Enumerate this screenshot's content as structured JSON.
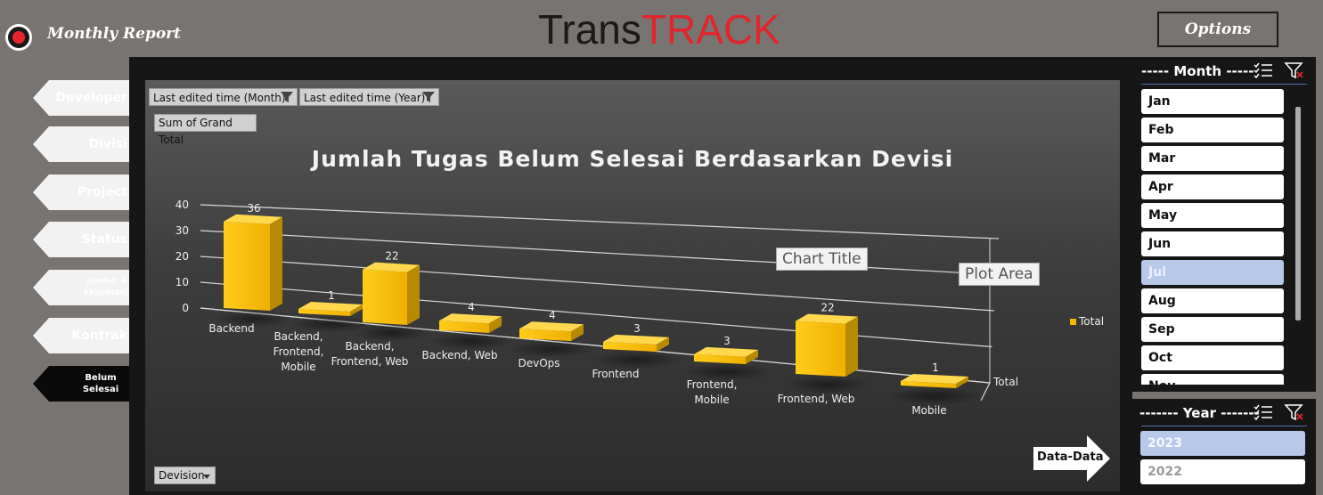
{
  "header": {
    "report_title": "Monthly Report",
    "brand_part1": "Trans",
    "brand_part2": "TRACK",
    "options_label": "Options"
  },
  "nav": [
    {
      "label": "Developer"
    },
    {
      "label": "Divisi"
    },
    {
      "label": "Project"
    },
    {
      "label": "Status"
    },
    {
      "label": "Jumlah & Ekspetasi"
    },
    {
      "label": "Kontrak"
    },
    {
      "label": "Belum Selesai",
      "active": true
    }
  ],
  "pivot": {
    "filter_month": "Last edited time (Month)",
    "filter_year": "Last edited time (Year)",
    "value_field": "Sum of Grand Total",
    "axis_field": "Devision"
  },
  "tooltips": {
    "chart_title_tip": "Chart Title",
    "plot_area_tip": "Plot Area"
  },
  "data_button": "Data-Data",
  "chart_data": {
    "type": "bar",
    "title": "Jumlah Tugas Belum Selesai Berdasarkan Devisi",
    "categories": [
      "Backend",
      "Backend, Frontend, Mobile",
      "Backend, Frontend, Web",
      "Backend, Web",
      "DevOps",
      "Frontend",
      "Frontend, Mobile",
      "Frontend, Web",
      "Mobile"
    ],
    "category_lines": [
      [
        "Backend"
      ],
      [
        "Backend,",
        "Frontend,",
        "Mobile"
      ],
      [
        "Backend,",
        "Frontend, Web"
      ],
      [
        "Backend, Web"
      ],
      [
        "DevOps"
      ],
      [
        "Frontend"
      ],
      [
        "Frontend,",
        "Mobile"
      ],
      [
        "Frontend, Web"
      ],
      [
        "Mobile"
      ]
    ],
    "series": [
      {
        "name": "Total",
        "values": [
          36,
          1,
          22,
          4,
          4,
          3,
          3,
          22,
          1
        ]
      }
    ],
    "data_labels": [
      "36",
      "1",
      "22",
      "4",
      "4",
      "3",
      "3",
      "22",
      "1"
    ],
    "y_ticks": [
      "0",
      "10",
      "20",
      "30",
      "40"
    ],
    "ylim": [
      0,
      40
    ],
    "depth_axis_label": "Total",
    "legend": "right",
    "grid": true,
    "bar_color": "#f3b800"
  },
  "month_slicer": {
    "title": "----- Month -----",
    "items": [
      {
        "label": "Jan",
        "selected": false
      },
      {
        "label": "Feb",
        "selected": false
      },
      {
        "label": "Mar",
        "selected": false
      },
      {
        "label": "Apr",
        "selected": false
      },
      {
        "label": "May",
        "selected": false
      },
      {
        "label": "Jun",
        "selected": false
      },
      {
        "label": "Jul",
        "selected": true
      },
      {
        "label": "Aug",
        "selected": false
      },
      {
        "label": "Sep",
        "selected": false
      },
      {
        "label": "Oct",
        "selected": false
      },
      {
        "label": "Nov",
        "selected": false
      }
    ]
  },
  "year_slicer": {
    "title": "------- Year -------",
    "items": [
      {
        "label": "2023",
        "selected": true
      },
      {
        "label": "2022",
        "selected": false
      }
    ]
  }
}
